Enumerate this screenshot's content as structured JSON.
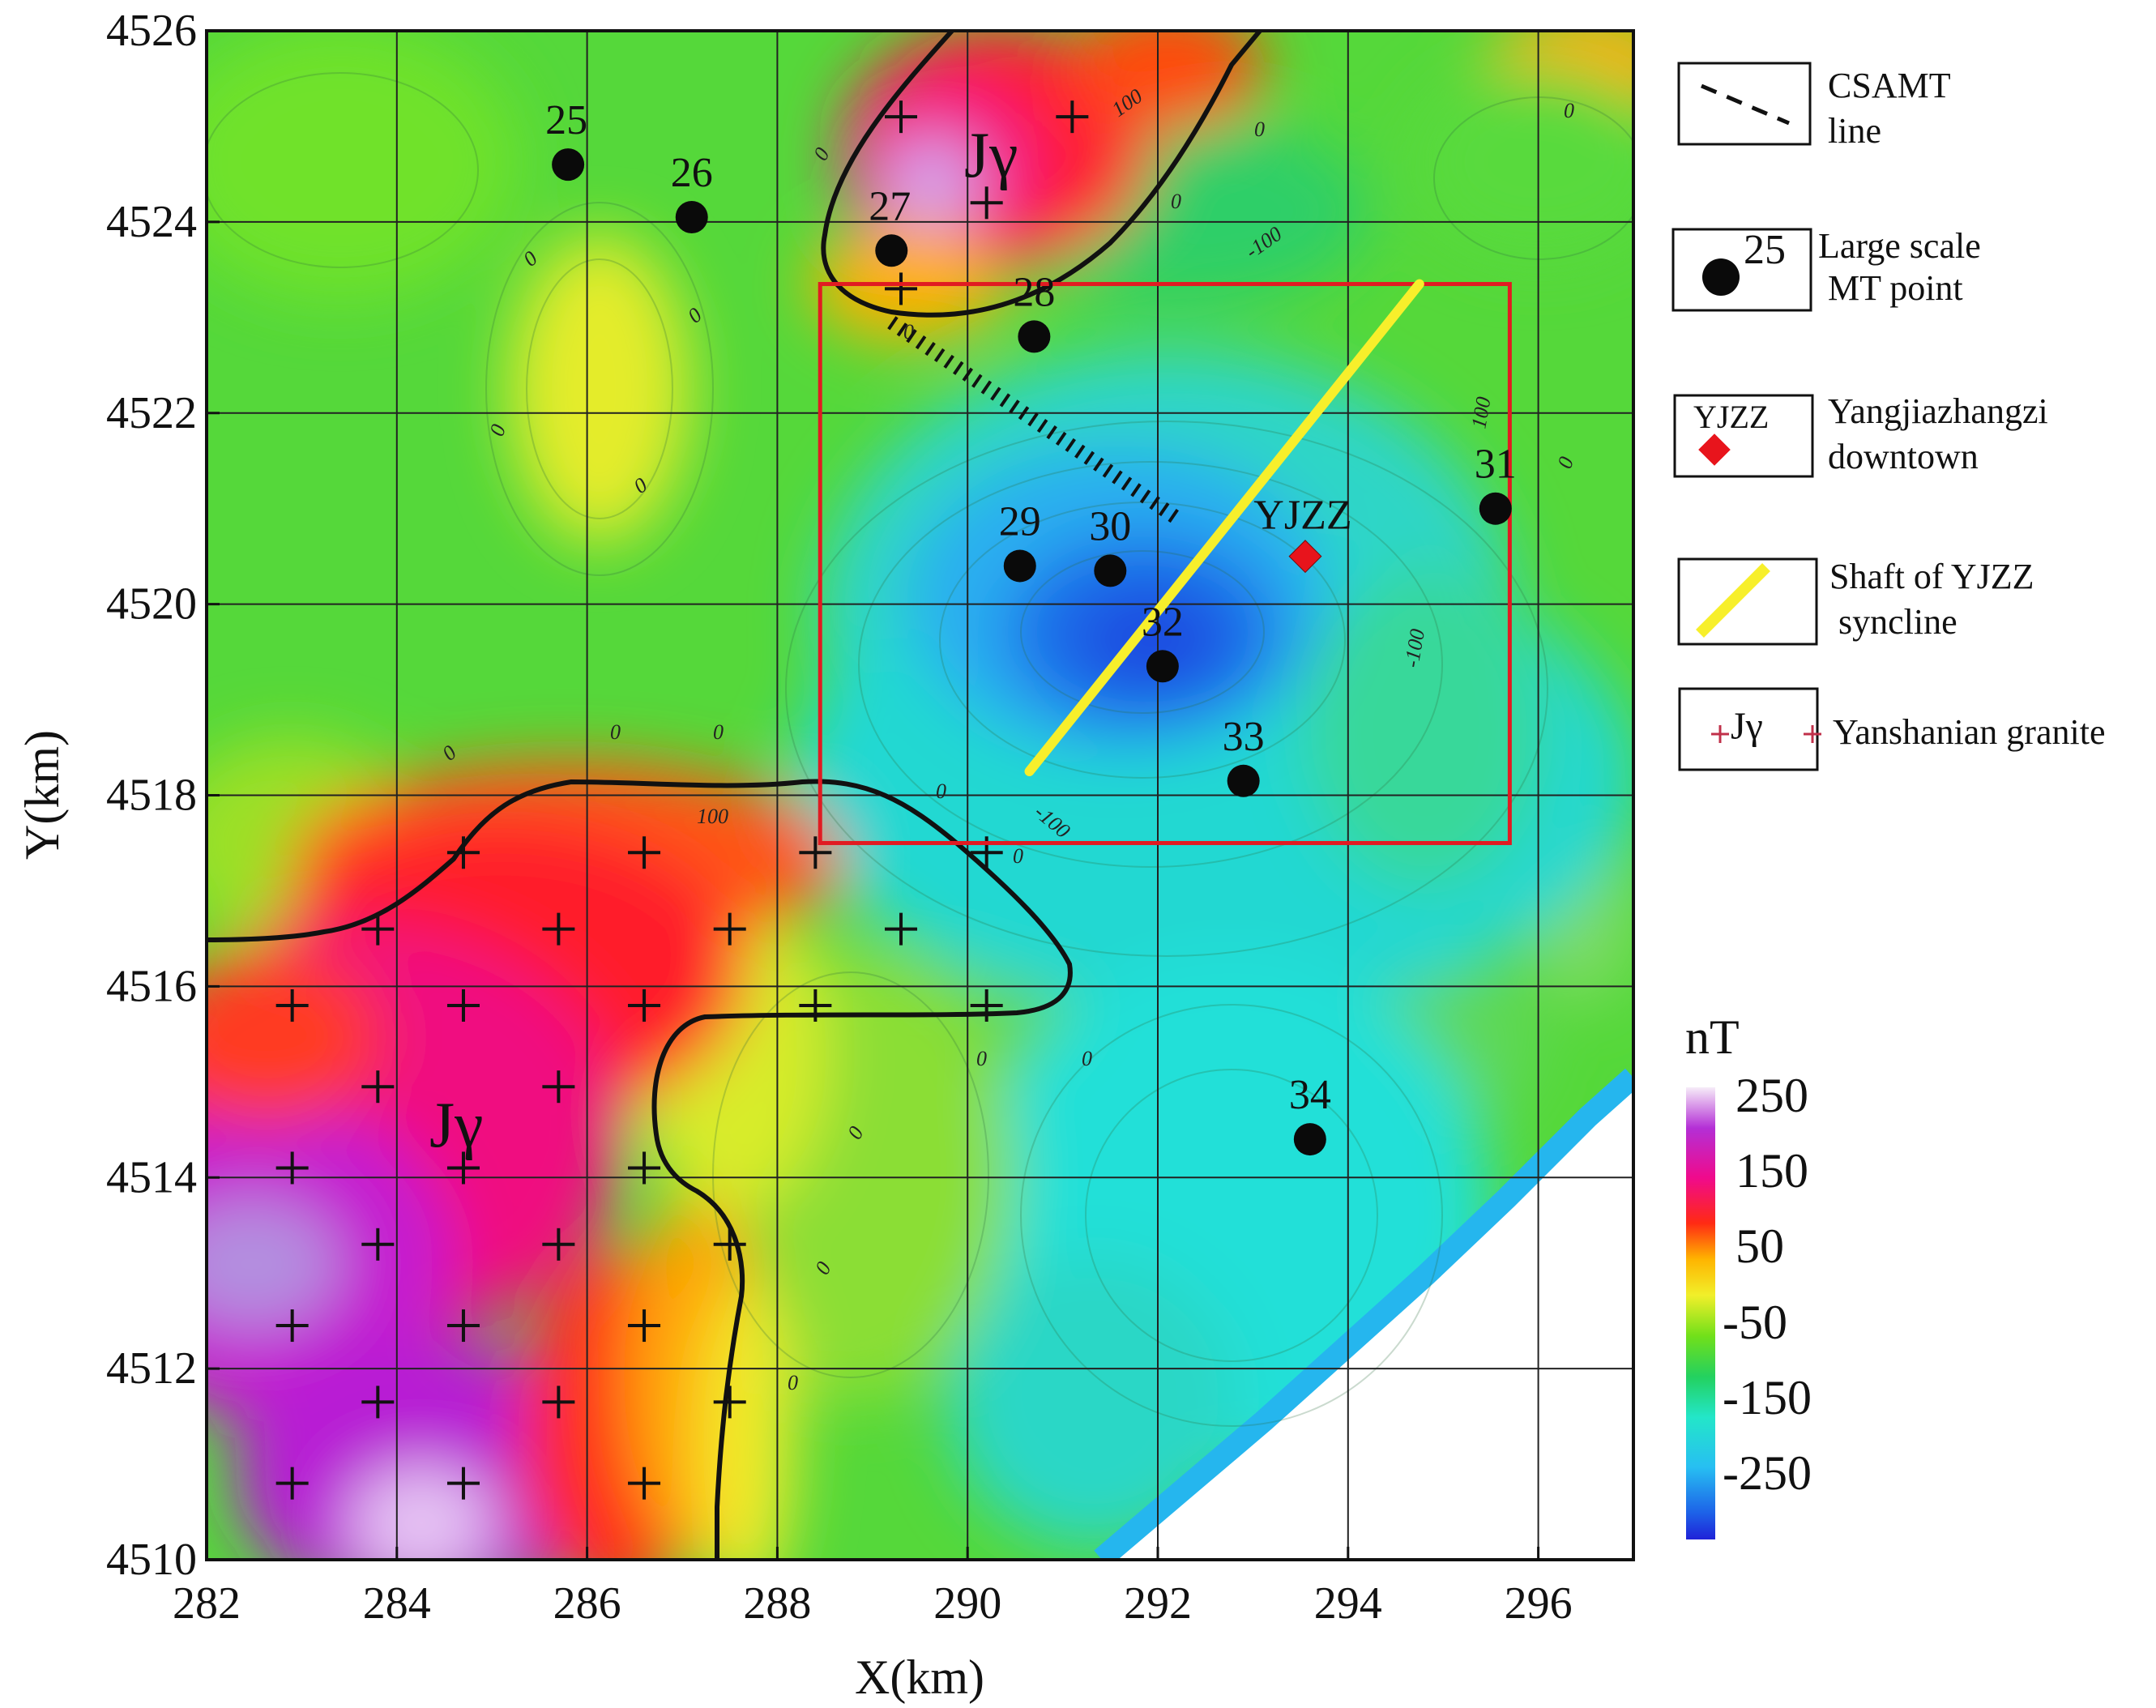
{
  "chart_data": {
    "type": "heatmap",
    "title": "",
    "xlabel": "X(km)",
    "ylabel": "Y(km)",
    "xlim": [
      282,
      297
    ],
    "ylim": [
      4510,
      4526
    ],
    "x_ticks": [
      "282",
      "284",
      "286",
      "288",
      "290",
      "292",
      "294",
      "296"
    ],
    "y_ticks": [
      "4510",
      "4512",
      "4514",
      "4516",
      "4518",
      "4520",
      "4522",
      "4524",
      "4526"
    ],
    "grid": true,
    "colorbar": {
      "unit": "nT",
      "labels": [
        "250",
        "150",
        "50",
        "-50",
        "-150",
        "-250"
      ],
      "colors": [
        "#f4e8f7",
        "#b42fd6",
        "#f00a8c",
        "#ff2a14",
        "#ffb400",
        "#f1ef2a",
        "#71e01a",
        "#23d15f",
        "#23e6c9",
        "#27bff2",
        "#1d63e8",
        "#1f22d8"
      ]
    },
    "mt_points": [
      {
        "label": "25",
        "x": 285.8,
        "y": 4524.6
      },
      {
        "label": "26",
        "x": 287.1,
        "y": 4524.05
      },
      {
        "label": "27",
        "x": 289.2,
        "y": 4523.7
      },
      {
        "label": "28",
        "x": 290.7,
        "y": 4522.8
      },
      {
        "label": "29",
        "x": 290.55,
        "y": 4520.4
      },
      {
        "label": "30",
        "x": 291.5,
        "y": 4520.35
      },
      {
        "label": "31",
        "x": 295.55,
        "y": 4521.0
      },
      {
        "label": "32",
        "x": 292.05,
        "y": 4519.35
      },
      {
        "label": "33",
        "x": 292.9,
        "y": 4518.15
      },
      {
        "label": "34",
        "x": 293.6,
        "y": 4514.4
      }
    ],
    "town": {
      "label": "YJZZ",
      "x": 293.55,
      "y": 4520.5,
      "color": "#e8141c"
    },
    "study_area": {
      "x": [
        288.45,
        295.7
      ],
      "y": [
        4517.5,
        4523.35
      ],
      "color": "#e11b22"
    },
    "syncline_axis": {
      "x": [
        290.65,
        294.75
      ],
      "y": [
        4518.25,
        4523.35
      ],
      "color": "#f7ef2b"
    },
    "csamt_line": {
      "x": [
        289.2,
        292.2
      ],
      "y": [
        4522.95,
        4520.9
      ]
    },
    "granite_label": "Jγ",
    "contour_labels": [
      "0",
      "100",
      "-100"
    ]
  },
  "legend": {
    "csamt": [
      "CSAMT",
      "line"
    ],
    "mt_point": {
      "number": "25",
      "lines": [
        "Large scale",
        "MT point"
      ]
    },
    "town": {
      "box_label": "YJZZ",
      "lines": [
        "Yangjiazhangzi",
        "downtown"
      ]
    },
    "syncline": [
      "Shaft of YJZZ",
      " syncline"
    ],
    "granite": {
      "symbol": "Jγ",
      "text": "Yanshanian granite"
    }
  }
}
